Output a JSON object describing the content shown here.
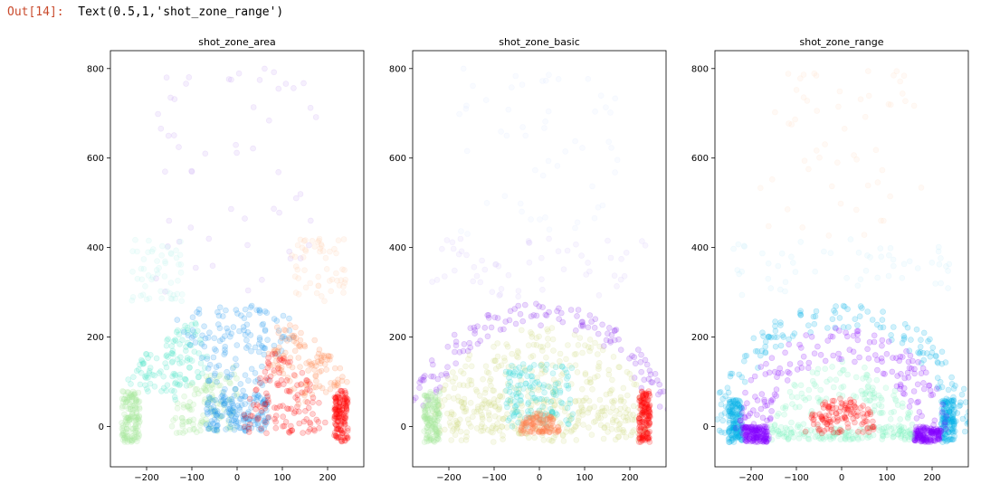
{
  "cell": {
    "prompt": "Out[14]:",
    "result": "Text(0.5,1,'shot_zone_range')"
  },
  "chart_data": [
    {
      "type": "scatter",
      "title": "shot_zone_area",
      "xlabel": "",
      "ylabel": "",
      "xlim": [
        -280,
        280
      ],
      "ylim": [
        -90,
        840
      ],
      "xticks": [
        -200,
        -100,
        0,
        100,
        200
      ],
      "yticks": [
        0,
        200,
        400,
        600,
        800
      ],
      "grid": false,
      "point_alpha": 0.18,
      "groups": [
        {
          "color": "#a5e89a",
          "region": "wedge",
          "r": [
            0,
            150
          ],
          "angle_deg": [
            90,
            180
          ]
        },
        {
          "color": "#a5e89a",
          "region": "box",
          "x": [
            -255,
            -215
          ],
          "y": [
            -35,
            80
          ]
        },
        {
          "color": "#4fe6c8",
          "region": "annulus",
          "r": [
            150,
            270
          ],
          "angle_deg": [
            110,
            155
          ]
        },
        {
          "color": "#1e96f0",
          "region": "wedge",
          "r": [
            0,
            290
          ],
          "angle_deg": [
            60,
            120
          ]
        },
        {
          "color": "#1e96f0",
          "region": "box",
          "x": [
            -70,
            70
          ],
          "y": [
            -10,
            70
          ]
        },
        {
          "color": "#ff8c55",
          "region": "annulus",
          "r": [
            150,
            270
          ],
          "angle_deg": [
            25,
            70
          ]
        },
        {
          "color": "#ff0000",
          "region": "wedge",
          "r": [
            0,
            200
          ],
          "angle_deg": [
            0,
            70
          ]
        },
        {
          "color": "#ff0000",
          "region": "box",
          "x": [
            215,
            245
          ],
          "y": [
            -35,
            80
          ]
        },
        {
          "color": "#c8a4f4",
          "region": "scatter",
          "x": [
            -180,
            180
          ],
          "y": [
            300,
            800
          ]
        },
        {
          "color": "#bff4ec",
          "region": "scatter",
          "x": [
            -240,
            -120
          ],
          "y": [
            280,
            420
          ]
        },
        {
          "color": "#ffd0b4",
          "region": "scatter",
          "x": [
            120,
            240
          ],
          "y": [
            280,
            420
          ]
        }
      ]
    },
    {
      "type": "scatter",
      "title": "shot_zone_basic",
      "xlabel": "",
      "ylabel": "",
      "xlim": [
        -280,
        280
      ],
      "ylim": [
        -90,
        840
      ],
      "xticks": [
        -200,
        -100,
        0,
        100,
        200
      ],
      "yticks": [
        0,
        200,
        400,
        600,
        800
      ],
      "grid": false,
      "point_alpha": 0.18,
      "groups": [
        {
          "color": "#8a2ff0",
          "region": "annulus",
          "r": [
            240,
            290
          ],
          "angle_deg": [
            10,
            170
          ]
        },
        {
          "color": "#d4dd8a",
          "region": "wedge",
          "r": [
            0,
            240
          ],
          "angle_deg": [
            0,
            180
          ]
        },
        {
          "color": "#d4dd8a",
          "region": "box",
          "x": [
            -220,
            220
          ],
          "y": [
            -35,
            60
          ]
        },
        {
          "color": "#2bd6d6",
          "region": "box",
          "x": [
            -75,
            75
          ],
          "y": [
            0,
            140
          ]
        },
        {
          "color": "#ff7f4f",
          "region": "wedge",
          "r": [
            0,
            45
          ],
          "angle_deg": [
            0,
            180
          ]
        },
        {
          "color": "#a5e89a",
          "region": "box",
          "x": [
            -255,
            -220
          ],
          "y": [
            -35,
            80
          ]
        },
        {
          "color": "#ff0000",
          "region": "box",
          "x": [
            220,
            245
          ],
          "y": [
            -35,
            80
          ]
        },
        {
          "color": "#d8c8fa",
          "region": "scatter",
          "x": [
            -240,
            240
          ],
          "y": [
            290,
            420
          ]
        },
        {
          "color": "#dbe8ff",
          "region": "scatter",
          "x": [
            -180,
            180
          ],
          "y": [
            420,
            800
          ]
        }
      ]
    },
    {
      "type": "scatter",
      "title": "shot_zone_range",
      "xlabel": "",
      "ylabel": "",
      "xlim": [
        -280,
        280
      ],
      "ylim": [
        -90,
        840
      ],
      "xticks": [
        -200,
        -100,
        0,
        100,
        200
      ],
      "yticks": [
        0,
        200,
        400,
        600,
        800
      ],
      "grid": false,
      "point_alpha": 0.18,
      "groups": [
        {
          "color": "#00b0e8",
          "region": "annulus",
          "r": [
            235,
            290
          ],
          "angle_deg": [
            0,
            180
          ]
        },
        {
          "color": "#00b0e8",
          "region": "box",
          "x": [
            -250,
            -220
          ],
          "y": [
            -35,
            60
          ]
        },
        {
          "color": "#00b0e8",
          "region": "box",
          "x": [
            220,
            250
          ],
          "y": [
            -35,
            60
          ]
        },
        {
          "color": "#8400ff",
          "region": "annulus",
          "r": [
            160,
            235
          ],
          "angle_deg": [
            0,
            180
          ]
        },
        {
          "color": "#8400ff",
          "region": "box",
          "x": [
            -220,
            -160
          ],
          "y": [
            -35,
            0
          ]
        },
        {
          "color": "#8400ff",
          "region": "box",
          "x": [
            160,
            220
          ],
          "y": [
            -35,
            0
          ]
        },
        {
          "color": "#82f5c0",
          "region": "annulus",
          "r": [
            80,
            160
          ],
          "angle_deg": [
            0,
            180
          ]
        },
        {
          "color": "#82f5c0",
          "region": "box",
          "x": [
            -160,
            160
          ],
          "y": [
            -30,
            0
          ]
        },
        {
          "color": "#ff0000",
          "region": "wedge",
          "r": [
            0,
            80
          ],
          "angle_deg": [
            0,
            180
          ]
        },
        {
          "color": "#c7ecfa",
          "region": "scatter",
          "x": [
            -240,
            240
          ],
          "y": [
            290,
            420
          ]
        },
        {
          "color": "#ffe0c8",
          "region": "scatter",
          "x": [
            -180,
            180
          ],
          "y": [
            420,
            800
          ]
        }
      ]
    }
  ]
}
